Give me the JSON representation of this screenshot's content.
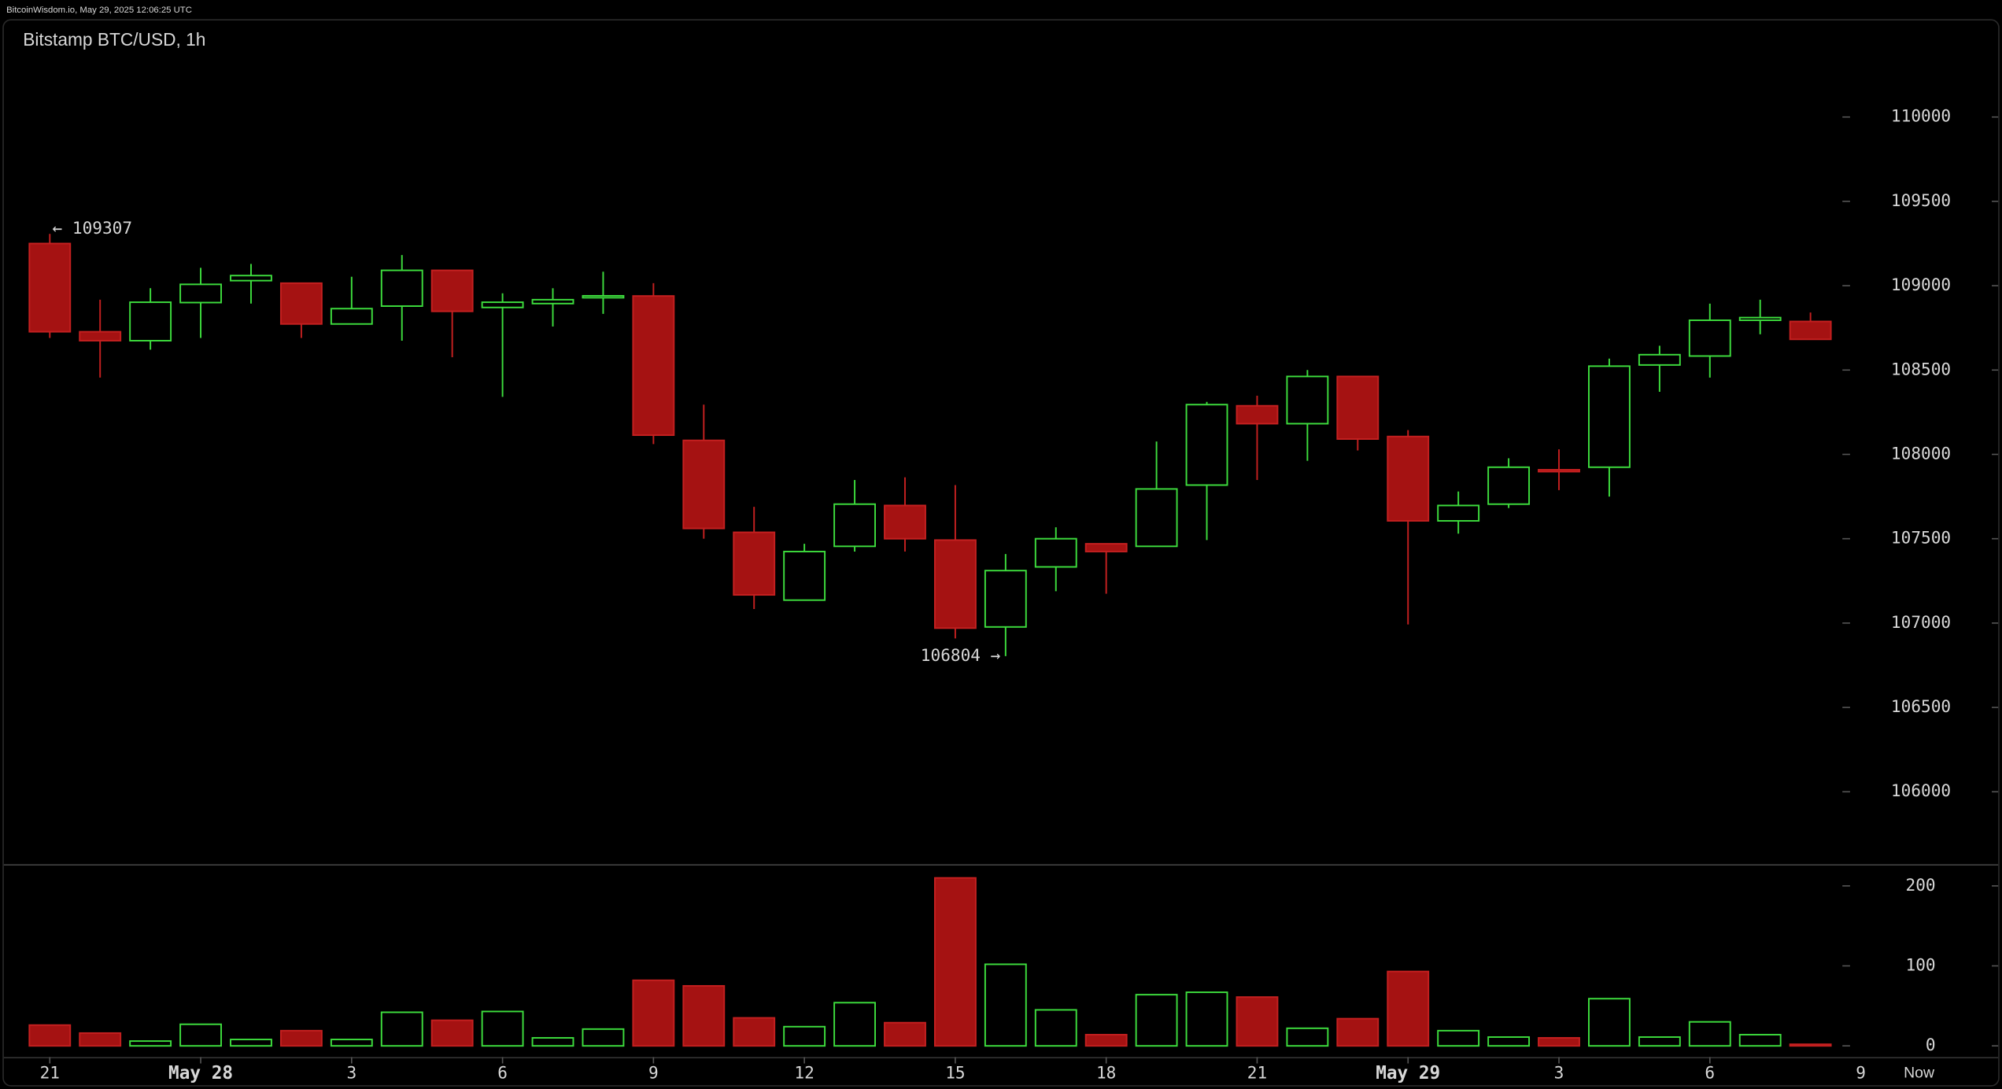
{
  "header": {
    "source": "BitcoinWisdom.io, May 29, 2025 12:06:25 UTC"
  },
  "chart_data": {
    "type": "candlestick",
    "title": "Bitstamp BTC/USD, 1h",
    "categories": [
      "21",
      null,
      null,
      "May 28",
      null,
      null,
      "3",
      null,
      null,
      "6",
      null,
      null,
      "9",
      null,
      null,
      "12",
      null,
      null,
      "15",
      null,
      null,
      "18",
      null,
      null,
      "21",
      null,
      null,
      "May 29",
      null,
      null,
      "3",
      null,
      null,
      "6",
      null,
      null
    ],
    "x_end_labels": [
      "9",
      "Now"
    ],
    "open": [
      109250,
      108727,
      108674,
      108900,
      109030,
      109015,
      108773,
      108879,
      109091,
      108871,
      108894,
      108932,
      108939,
      108083,
      107538,
      107136,
      107455,
      107697,
      107492,
      106977,
      107333,
      107470,
      107455,
      107818,
      108288,
      108182,
      108462,
      108106,
      107606,
      107705,
      107909,
      107924,
      108530,
      108583,
      108795,
      108788
    ],
    "high": [
      109307,
      108917,
      108985,
      109106,
      109129,
      109015,
      109053,
      109182,
      109091,
      108955,
      108985,
      109083,
      109015,
      108295,
      107689,
      107470,
      107848,
      107864,
      107818,
      107409,
      107568,
      107470,
      108076,
      108311,
      108348,
      108500,
      108462,
      108144,
      107780,
      107977,
      108030,
      108568,
      108644,
      108894,
      108917,
      108841
    ],
    "low": [
      108690,
      108455,
      108621,
      108690,
      108894,
      108690,
      108773,
      108674,
      108576,
      108341,
      108758,
      108833,
      108061,
      107500,
      107083,
      107136,
      107424,
      107424,
      106909,
      106804,
      107189,
      107174,
      107455,
      107492,
      107848,
      107962,
      108023,
      106992,
      107530,
      107682,
      107788,
      107750,
      108371,
      108455,
      108712,
      108682
    ],
    "close": [
      108727,
      108674,
      108902,
      109008,
      109060,
      108773,
      108864,
      109091,
      108848,
      108902,
      108917,
      108940,
      108114,
      107561,
      107167,
      107424,
      107705,
      107500,
      106970,
      107311,
      107500,
      107424,
      107795,
      108295,
      108182,
      108462,
      108091,
      107606,
      107697,
      107924,
      107902,
      108523,
      108591,
      108795,
      108811,
      108682
    ],
    "volume": [
      26,
      16,
      6,
      27,
      8,
      19,
      8,
      42,
      32,
      43,
      10,
      21,
      82,
      75,
      35,
      24,
      54,
      29,
      210,
      102,
      45,
      14,
      64,
      67,
      61,
      22,
      34,
      93,
      19,
      11,
      10,
      59,
      11,
      30,
      14,
      2
    ],
    "up_color": "#3ddc3d",
    "down_color": "#a51212",
    "ylim": [
      105570,
      110580
    ],
    "yticks": [
      106000,
      106500,
      107000,
      107500,
      108000,
      108500,
      109000,
      109500,
      110000
    ],
    "y2lim": [
      -14,
      227
    ],
    "y2ticks": [
      0,
      100,
      200
    ],
    "annotations": [
      {
        "label": "← 109307",
        "value": 109307
      },
      {
        "label": "106804 →",
        "value": 106804
      }
    ]
  }
}
